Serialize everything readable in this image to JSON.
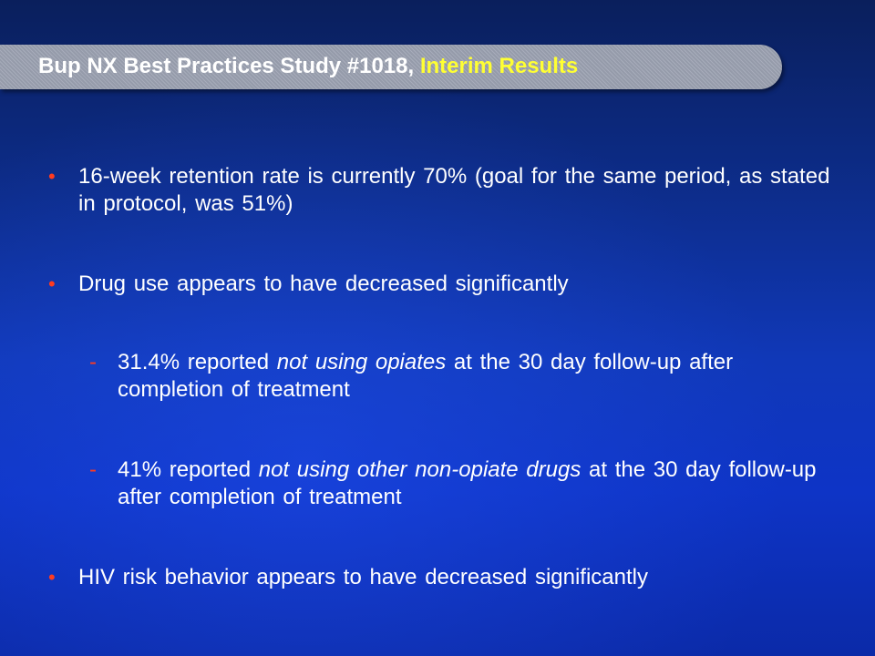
{
  "title": {
    "main": "Bup NX Best Practices Study #1018,",
    "accent": "Interim Results"
  },
  "bullets": [
    {
      "marker": "•",
      "text": "16-week retention rate is currently 70% (goal for the same period, as stated in protocol, was 51%)"
    },
    {
      "marker": "•",
      "text": "Drug use appears to have decreased significantly"
    },
    {
      "marker": "-",
      "text_before": "31.4% reported ",
      "text_emphasis": "not using opiates",
      "text_after": " at the 30 day follow-up after completion of treatment"
    },
    {
      "marker": "-",
      "text_before": "41% reported ",
      "text_emphasis": "not using other non-opiate drugs",
      "text_after": " at the 30 day follow-up after completion of treatment"
    },
    {
      "marker": "•",
      "text": "HIV risk behavior appears to have decreased significantly"
    }
  ],
  "colors": {
    "background": "#0e34c6",
    "title_banner": "#9da3b3",
    "title_text": "#ffffff",
    "title_accent": "#ffff33",
    "marker": "#ff3b1f",
    "body_text": "#ffffff"
  }
}
